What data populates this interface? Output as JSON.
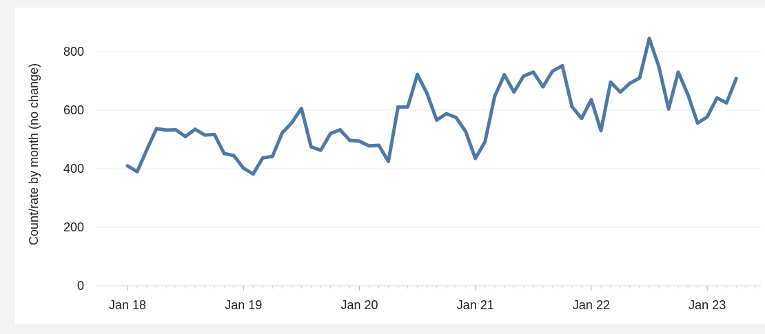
{
  "chart_data": {
    "type": "line",
    "title": "",
    "xlabel": "",
    "ylabel": "Count/rate by month (no change)",
    "ylim": [
      0,
      880
    ],
    "yticks": [
      0,
      200,
      400,
      600,
      800
    ],
    "grid": true,
    "line_color": "#4e79a7",
    "xticks": [
      {
        "label": "Jan 18",
        "date": "2018-01"
      },
      {
        "label": "Jan 19",
        "date": "2019-01"
      },
      {
        "label": "Jan 20",
        "date": "2020-01"
      },
      {
        "label": "Jan 21",
        "date": "2021-01"
      },
      {
        "label": "Jan 22",
        "date": "2022-01"
      },
      {
        "label": "Jan 23",
        "date": "2023-01"
      }
    ],
    "x": [
      "2018-01",
      "2018-02",
      "2018-03",
      "2018-04",
      "2018-05",
      "2018-06",
      "2018-07",
      "2018-08",
      "2018-09",
      "2018-10",
      "2018-11",
      "2018-12",
      "2019-01",
      "2019-02",
      "2019-03",
      "2019-04",
      "2019-05",
      "2019-06",
      "2019-07",
      "2019-08",
      "2019-09",
      "2019-10",
      "2019-11",
      "2019-12",
      "2020-01",
      "2020-02",
      "2020-03",
      "2020-04",
      "2020-05",
      "2020-06",
      "2020-07",
      "2020-08",
      "2020-09",
      "2020-10",
      "2020-11",
      "2020-12",
      "2021-01",
      "2021-02",
      "2021-03",
      "2021-04",
      "2021-05",
      "2021-06",
      "2021-07",
      "2021-08",
      "2021-09",
      "2021-10",
      "2021-11",
      "2021-12",
      "2022-01",
      "2022-02",
      "2022-03",
      "2022-04",
      "2022-05",
      "2022-06",
      "2022-07",
      "2022-08",
      "2022-09",
      "2022-10",
      "2022-11",
      "2022-12",
      "2023-01",
      "2023-02",
      "2023-03",
      "2023-04"
    ],
    "series": [
      {
        "values": [
          410,
          390,
          465,
          537,
          532,
          533,
          510,
          535,
          515,
          517,
          452,
          445,
          402,
          382,
          437,
          442,
          522,
          557,
          606,
          475,
          463,
          520,
          533,
          497,
          494,
          478,
          480,
          425,
          611,
          611,
          722,
          657,
          566,
          588,
          575,
          527,
          435,
          492,
          647,
          721,
          662,
          717,
          730,
          680,
          734,
          752,
          612,
          572,
          636,
          530,
          696,
          662,
          692,
          710,
          845,
          748,
          604,
          730,
          653,
          556,
          577,
          642,
          625,
          708
        ]
      }
    ]
  }
}
